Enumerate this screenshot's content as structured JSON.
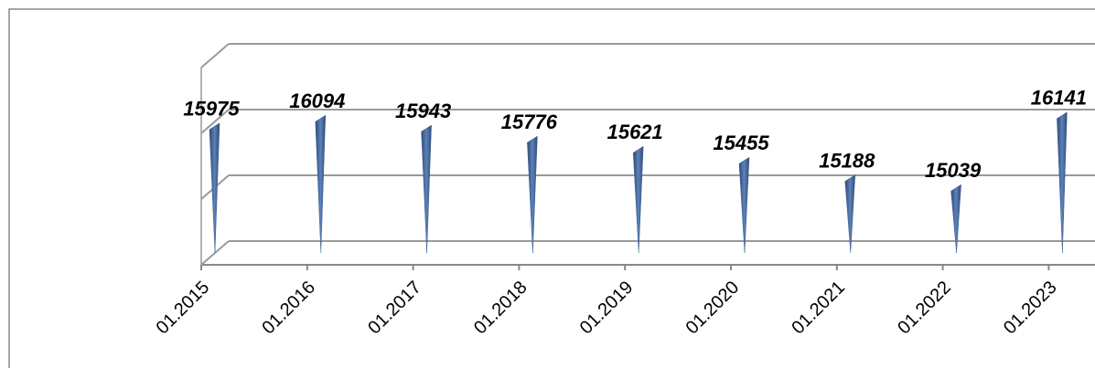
{
  "chart_data": {
    "type": "bar3d",
    "categories": [
      "01.2015",
      "01.2016",
      "01.2017",
      "01.2018",
      "01.2019",
      "01.2020",
      "01.2021",
      "01.2022",
      "01.2023"
    ],
    "values": [
      15975,
      16094,
      15943,
      15776,
      15621,
      15455,
      15188,
      15039,
      16141
    ],
    "color": "#3e5f8f",
    "ylim": [
      14000,
      17000
    ],
    "yticks": [
      14000,
      15000,
      16000,
      17000
    ],
    "grid": true
  }
}
